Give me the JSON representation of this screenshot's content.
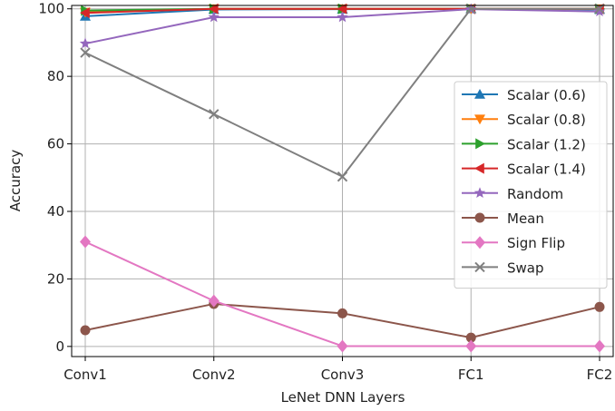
{
  "chart_data": {
    "type": "line",
    "title": "",
    "xlabel": "LeNet DNN Layers",
    "ylabel": "Accuracy",
    "categories": [
      "Conv1",
      "Conv2",
      "Conv3",
      "FC1",
      "FC2"
    ],
    "ylim": [
      -3,
      101
    ],
    "yticks": [
      0,
      20,
      40,
      60,
      80,
      100
    ],
    "grid": true,
    "legend_position": "center-right",
    "series": [
      {
        "name": "Scalar (0.6)",
        "color": "#1f77b4",
        "marker": "triangle-up",
        "values": [
          97.8,
          99.8,
          99.9,
          100,
          99.8
        ]
      },
      {
        "name": "Scalar (0.8)",
        "color": "#ff7f0e",
        "marker": "triangle-down",
        "values": [
          99.0,
          100,
          100,
          100,
          100
        ]
      },
      {
        "name": "Scalar (1.2)",
        "color": "#2ca02c",
        "marker": "triangle-right",
        "values": [
          99.5,
          100,
          100,
          100,
          100
        ]
      },
      {
        "name": "Scalar (1.4)",
        "color": "#d62728",
        "marker": "triangle-left",
        "values": [
          98.8,
          100,
          100,
          100,
          100
        ]
      },
      {
        "name": "Random",
        "color": "#9467bd",
        "marker": "star",
        "values": [
          89.7,
          97.5,
          97.5,
          99.9,
          99.2
        ]
      },
      {
        "name": "Mean",
        "color": "#8c564b",
        "marker": "circle",
        "values": [
          4.8,
          12.6,
          9.8,
          2.6,
          11.7
        ]
      },
      {
        "name": "Sign Flip",
        "color": "#e377c2",
        "marker": "diamond",
        "values": [
          31.0,
          13.5,
          0.1,
          0.1,
          0.1
        ]
      },
      {
        "name": "Swap",
        "color": "#7f7f7f",
        "marker": "x",
        "values": [
          87.0,
          68.8,
          50.3,
          100,
          100
        ]
      }
    ]
  }
}
